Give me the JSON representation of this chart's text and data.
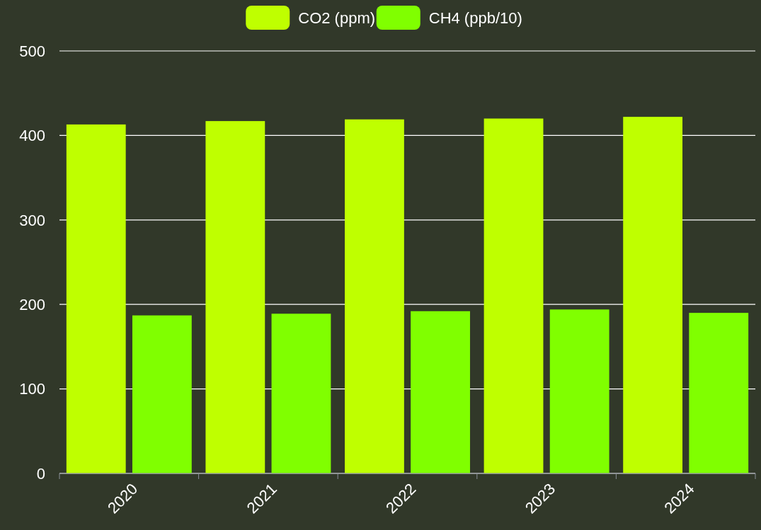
{
  "chart_data": {
    "type": "bar",
    "categories": [
      "2020",
      "2021",
      "2022",
      "2023",
      "2024"
    ],
    "series": [
      {
        "name": "CO2 (ppm)",
        "color": "#bfff00",
        "values": [
          413,
          417,
          419,
          420,
          422
        ]
      },
      {
        "name": "CH4 (ppb/10)",
        "color": "#80ff00",
        "values": [
          187,
          189,
          192,
          194,
          190
        ]
      }
    ],
    "ylim": [
      0,
      500
    ],
    "yticks": [
      0,
      100,
      200,
      300,
      400,
      500
    ],
    "grid": "y",
    "legend": "top"
  }
}
